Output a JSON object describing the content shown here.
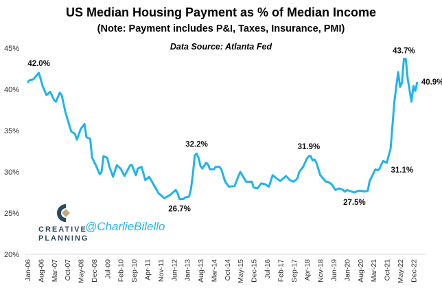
{
  "chart_data": {
    "type": "line",
    "title": "US Median Housing Payment as % of Median Income",
    "subtitle": "(Note: Payment includes P&I, Taxes, Insurance, PMI)",
    "source": "Data Source: Atlanta Fed",
    "ylim": [
      20,
      45
    ],
    "y_ticks": [
      "20%",
      "25%",
      "30%",
      "35%",
      "40%",
      "45%"
    ],
    "y_tick_values": [
      20,
      25,
      30,
      35,
      40,
      45
    ],
    "x_tick_labels": [
      "Jan-06",
      "Aug-06",
      "Mar-07",
      "Oct-07",
      "May-08",
      "Dec-08",
      "Jul-09",
      "Feb-10",
      "Sep-10",
      "Apr-11",
      "Nov-11",
      "Jun-12",
      "Jan-13",
      "Aug-13",
      "Mar-14",
      "Oct-14",
      "May-15",
      "Dec-15",
      "Jul-16",
      "Feb-17",
      "Sep-17",
      "Apr-18",
      "Nov-18",
      "Jun-19",
      "Jan-20",
      "Aug-20",
      "Mar-21",
      "Oct-21",
      "May-22",
      "Dec-22"
    ],
    "grid": false,
    "line_color": "#1fb4ea",
    "series": [
      {
        "points": [
          [
            "2006-01",
            40.8
          ],
          [
            "2006-02",
            41.1
          ],
          [
            "2006-04",
            41.2
          ],
          [
            "2006-07",
            42.0
          ],
          [
            "2006-09",
            40.4
          ],
          [
            "2006-11",
            39.3
          ],
          [
            "2007-01",
            39.7
          ],
          [
            "2007-03",
            38.7
          ],
          [
            "2007-04",
            38.5
          ],
          [
            "2007-06",
            39.6
          ],
          [
            "2007-07",
            39.3
          ],
          [
            "2007-09",
            37.2
          ],
          [
            "2007-12",
            34.9
          ],
          [
            "2008-02",
            34.6
          ],
          [
            "2008-03",
            33.9
          ],
          [
            "2008-05",
            35.2
          ],
          [
            "2008-07",
            35.8
          ],
          [
            "2008-08",
            34.2
          ],
          [
            "2008-10",
            34.0
          ],
          [
            "2008-11",
            31.7
          ],
          [
            "2009-01",
            30.8
          ],
          [
            "2009-03",
            29.7
          ],
          [
            "2009-04",
            30.0
          ],
          [
            "2009-05",
            31.9
          ],
          [
            "2009-07",
            31.7
          ],
          [
            "2009-08",
            30.7
          ],
          [
            "2009-10",
            29.4
          ],
          [
            "2009-12",
            30.8
          ],
          [
            "2010-02",
            30.4
          ],
          [
            "2010-04",
            29.5
          ],
          [
            "2010-07",
            30.8
          ],
          [
            "2010-08",
            30.8
          ],
          [
            "2010-10",
            29.6
          ],
          [
            "2010-11",
            30.4
          ],
          [
            "2011-01",
            30.6
          ],
          [
            "2011-02",
            29.8
          ],
          [
            "2011-03",
            29.0
          ],
          [
            "2011-05",
            29.4
          ],
          [
            "2011-06",
            29.0
          ],
          [
            "2011-08",
            28.2
          ],
          [
            "2011-10",
            27.4
          ],
          [
            "2012-01",
            26.8
          ],
          [
            "2012-04",
            27.2
          ],
          [
            "2012-07",
            27.8
          ],
          [
            "2012-08",
            27.4
          ],
          [
            "2012-09",
            26.7
          ],
          [
            "2012-11",
            26.7
          ],
          [
            "2012-12",
            26.9
          ],
          [
            "2013-02",
            27.0
          ],
          [
            "2013-03",
            27.9
          ],
          [
            "2013-04",
            29.7
          ],
          [
            "2013-05",
            32.0
          ],
          [
            "2013-06",
            32.2
          ],
          [
            "2013-07",
            31.7
          ],
          [
            "2013-08",
            30.7
          ],
          [
            "2013-09",
            30.4
          ],
          [
            "2013-11",
            31.1
          ],
          [
            "2013-12",
            30.9
          ],
          [
            "2014-01",
            30.3
          ],
          [
            "2014-03",
            30.3
          ],
          [
            "2014-04",
            30.6
          ],
          [
            "2014-06",
            30.6
          ],
          [
            "2014-07",
            30.3
          ],
          [
            "2014-09",
            28.8
          ],
          [
            "2014-11",
            28.2
          ],
          [
            "2015-02",
            28.3
          ],
          [
            "2015-04",
            29.5
          ],
          [
            "2015-05",
            30.0
          ],
          [
            "2015-08",
            28.8
          ],
          [
            "2015-11",
            28.8
          ],
          [
            "2015-12",
            28.1
          ],
          [
            "2016-02",
            28.0
          ],
          [
            "2016-04",
            28.6
          ],
          [
            "2016-06",
            28.5
          ],
          [
            "2016-08",
            28.2
          ],
          [
            "2016-10",
            29.6
          ],
          [
            "2016-12",
            29.2
          ],
          [
            "2017-02",
            28.9
          ],
          [
            "2017-05",
            29.5
          ],
          [
            "2017-07",
            29.0
          ],
          [
            "2017-09",
            28.8
          ],
          [
            "2017-11",
            29.2
          ],
          [
            "2017-12",
            30.0
          ],
          [
            "2018-02",
            30.6
          ],
          [
            "2018-04",
            31.6
          ],
          [
            "2018-05",
            31.9
          ],
          [
            "2018-06",
            31.9
          ],
          [
            "2018-07",
            31.4
          ],
          [
            "2018-08",
            31.5
          ],
          [
            "2018-09",
            31.1
          ],
          [
            "2018-11",
            29.6
          ],
          [
            "2019-02",
            28.8
          ],
          [
            "2019-03",
            28.8
          ],
          [
            "2019-05",
            28.5
          ],
          [
            "2019-07",
            27.8
          ],
          [
            "2019-09",
            28.0
          ],
          [
            "2019-11",
            27.8
          ],
          [
            "2019-12",
            27.6
          ],
          [
            "2020-01",
            27.8
          ],
          [
            "2020-05",
            27.5
          ],
          [
            "2020-07",
            27.7
          ],
          [
            "2020-09",
            27.7
          ],
          [
            "2020-10",
            27.6
          ],
          [
            "2020-12",
            27.7
          ],
          [
            "2021-01",
            28.9
          ],
          [
            "2021-04",
            30.3
          ],
          [
            "2021-05",
            30.2
          ],
          [
            "2021-06",
            30.3
          ],
          [
            "2021-08",
            31.3
          ],
          [
            "2021-10",
            31.1
          ],
          [
            "2021-12",
            32.8
          ],
          [
            "2022-02",
            38.5
          ],
          [
            "2022-04",
            42.1
          ],
          [
            "2022-05",
            40.3
          ],
          [
            "2022-06",
            40.8
          ],
          [
            "2022-07",
            43.7
          ],
          [
            "2022-08",
            43.7
          ],
          [
            "2022-09",
            41.3
          ],
          [
            "2022-11",
            38.5
          ],
          [
            "2022-12",
            40.4
          ],
          [
            "2023-01",
            39.8
          ],
          [
            "2023-02",
            40.9
          ]
        ]
      }
    ],
    "annotations": [
      {
        "x": "2006-07",
        "y": 42.0,
        "label": "42.0%"
      },
      {
        "x": "2012-09",
        "y": 26.7,
        "label": "26.7%"
      },
      {
        "x": "2013-06",
        "y": 32.2,
        "label": "32.2%"
      },
      {
        "x": "2018-05",
        "y": 31.9,
        "label": "31.9%"
      },
      {
        "x": "2020-05",
        "y": 27.5,
        "label": "27.5%"
      },
      {
        "x": "2021-10",
        "y": 31.1,
        "label": "31.1%"
      },
      {
        "x": "2022-07",
        "y": 43.7,
        "label": "43.7%"
      },
      {
        "x": "2023-02",
        "y": 40.9,
        "label": "40.9%"
      }
    ]
  },
  "branding": {
    "logo_text_1": "CREATIVE",
    "logo_text_2": "PLANNING",
    "handle": "@CharlieBilello"
  }
}
